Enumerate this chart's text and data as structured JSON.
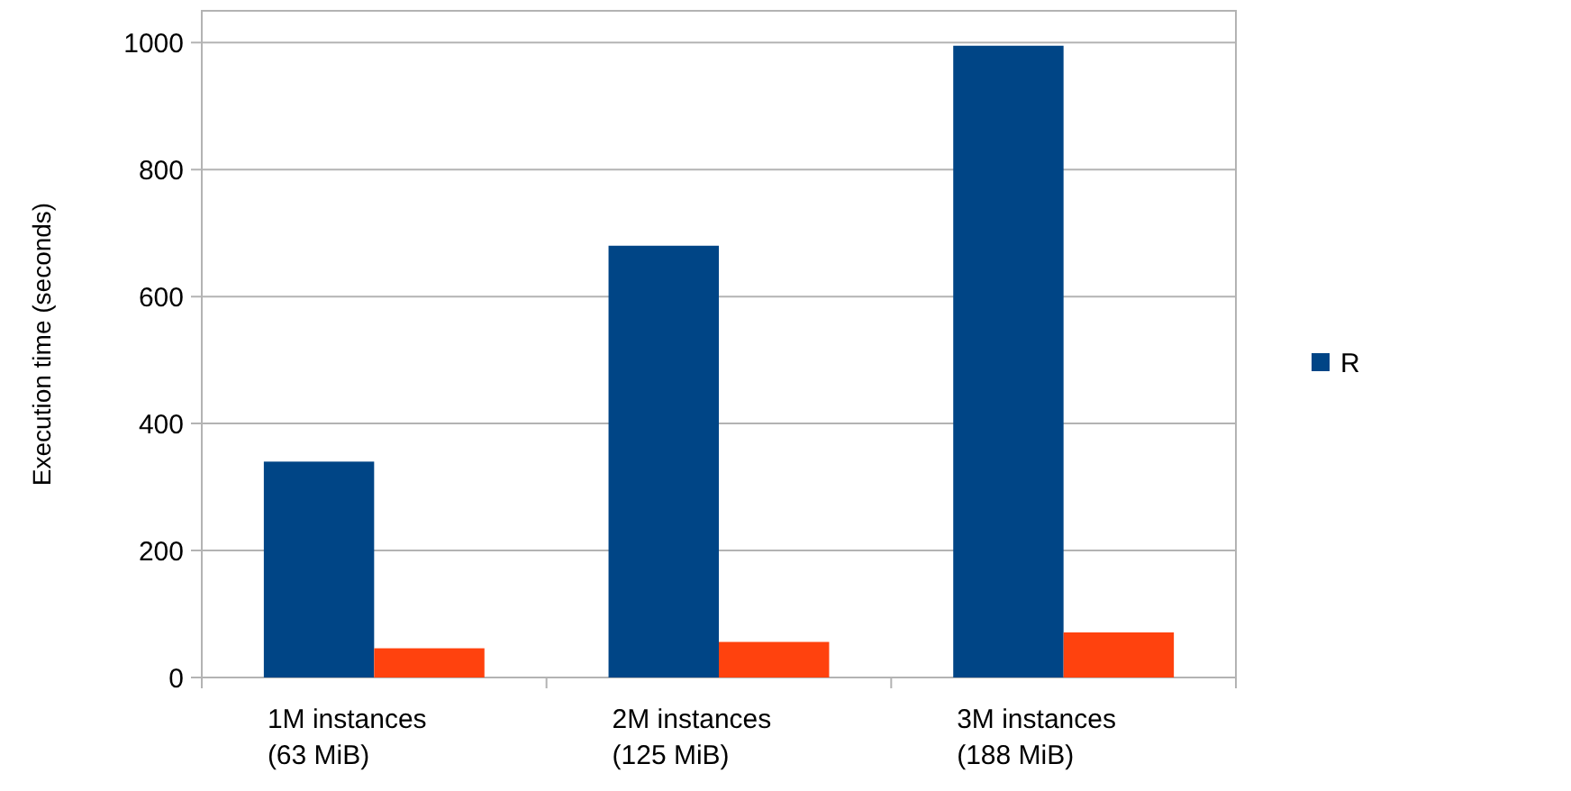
{
  "chart_data": {
    "type": "bar",
    "ylabel": "Execution time (seconds)",
    "categories": [
      "1M instances\n(63 MiB)",
      "2M instances\n(125 MiB)",
      "3M instances\n(188 MiB)"
    ],
    "series": [
      {
        "name": "R",
        "color": "#004586",
        "values": [
          340,
          680,
          995
        ]
      },
      {
        "color": "#ff420e",
        "values": [
          46,
          56,
          71
        ]
      }
    ],
    "ylim": [
      0,
      1050
    ],
    "yticks": [
      0,
      200,
      400,
      600,
      800,
      1000
    ],
    "grid": "y",
    "legend": "right"
  }
}
